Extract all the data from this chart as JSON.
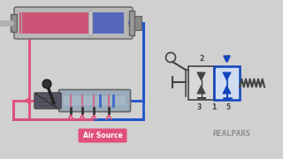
{
  "bg_color": "#d0d0d0",
  "brand": "REALPARS",
  "pink": "#e0507a",
  "blue": "#2255cc",
  "dark_blue": "#1144bb",
  "air_source_label": "Air Source",
  "dgray": "#444444",
  "mgray": "#888888",
  "lgray": "#c0c0c0",
  "cyl_pink": "#cc5577",
  "cyl_blue": "#5566bb",
  "cyl_gray": "#909090",
  "cyl_lgray": "#b8b8b8",
  "housing_color": "#8899aa",
  "spring_color": "#555555"
}
